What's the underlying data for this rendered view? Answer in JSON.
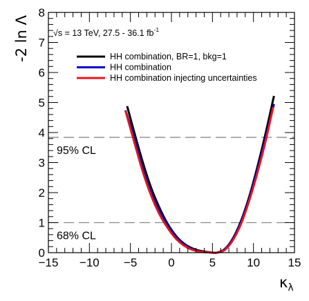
{
  "chart_data": {
    "type": "line",
    "ylabel": "-2 ln Λ",
    "xlabel_main": "κ",
    "xlabel_sub": "λ",
    "energy_text": "√s = 13 TeV, 27.5 - 36.1 fb",
    "energy_sup": "-1",
    "xlim": [
      -15,
      15
    ],
    "ylim": [
      0,
      8
    ],
    "x_ticks": [
      -15,
      -10,
      -5,
      0,
      5,
      10,
      15
    ],
    "x_tick_labels": [
      "−15",
      "−10",
      "−5",
      "0",
      "5",
      "10",
      "15"
    ],
    "y_ticks": [
      0,
      1,
      2,
      3,
      4,
      5,
      6,
      7,
      8
    ],
    "y_tick_labels": [
      "0",
      "1",
      "2",
      "3",
      "4",
      "5",
      "6",
      "7",
      "8"
    ],
    "reference_lines": [
      {
        "y": 3.84,
        "label": "95% CL"
      },
      {
        "y": 1.0,
        "label": "68% CL"
      }
    ],
    "series": [
      {
        "name": "HH combination, BR=1, bkg=1",
        "color": "#000000",
        "x": [
          -5.4,
          -4.5,
          -3.5,
          -2.5,
          -1.5,
          -0.5,
          0.5,
          1.5,
          2.5,
          3.5,
          4.5,
          5.5,
          6.5,
          7.5,
          8.5,
          9.5,
          10.5,
          11.5,
          12.5
        ],
        "y": [
          4.88,
          3.98,
          3.02,
          2.18,
          1.52,
          0.98,
          0.58,
          0.31,
          0.15,
          0.06,
          0.02,
          0.0,
          0.12,
          0.48,
          1.07,
          1.88,
          2.88,
          4.0,
          5.22
        ]
      },
      {
        "name": "HH combination",
        "color": "#0000cc",
        "x": [
          -5.6,
          -4.5,
          -3.5,
          -2.5,
          -1.5,
          -0.5,
          0.5,
          1.5,
          2.5,
          3.5,
          4.5,
          5.5,
          6.5,
          7.5,
          8.5,
          9.5,
          10.5,
          11.5,
          12.5
        ],
        "y": [
          4.74,
          3.78,
          2.82,
          2.02,
          1.4,
          0.92,
          0.54,
          0.28,
          0.12,
          0.04,
          0.01,
          0.0,
          0.11,
          0.46,
          1.03,
          1.82,
          2.78,
          3.86,
          4.95
        ]
      },
      {
        "name": "HH combination injecting uncertainties",
        "color": "#e8141b",
        "x": [
          -5.6,
          -4.5,
          -3.5,
          -2.5,
          -1.5,
          -0.5,
          0.5,
          1.5,
          2.5,
          3.5,
          4.5,
          5.5,
          6.5,
          7.5,
          8.5,
          9.5,
          10.5,
          11.5,
          12.4
        ],
        "y": [
          4.72,
          3.65,
          2.7,
          1.92,
          1.3,
          0.84,
          0.48,
          0.24,
          0.1,
          0.03,
          0.01,
          0.0,
          0.09,
          0.42,
          0.97,
          1.75,
          2.68,
          3.74,
          4.85
        ]
      }
    ]
  }
}
